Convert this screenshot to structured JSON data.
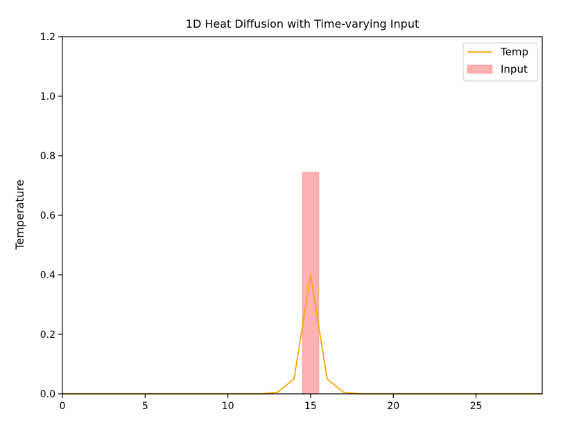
{
  "chart_data": {
    "type": "line",
    "title": "1D Heat Diffusion with Time-varying Input",
    "xlabel": "",
    "ylabel": "Temperature",
    "xlim": [
      0,
      29
    ],
    "ylim": [
      0,
      1.2
    ],
    "xticks": [
      0,
      5,
      10,
      15,
      20,
      25
    ],
    "yticks": [
      0.0,
      0.2,
      0.4,
      0.6,
      0.8,
      1.0,
      1.2
    ],
    "xtick_labels": [
      "0",
      "5",
      "10",
      "15",
      "20",
      "25"
    ],
    "ytick_labels": [
      "0.0",
      "0.2",
      "0.4",
      "0.6",
      "0.8",
      "1.0",
      "1.2"
    ],
    "grid": false,
    "legend_position": "top-right",
    "series": [
      {
        "name": "Temp",
        "kind": "line",
        "color": "#ffa500",
        "x": [
          0,
          1,
          2,
          3,
          4,
          5,
          6,
          7,
          8,
          9,
          10,
          11,
          12,
          13,
          14,
          15,
          16,
          17,
          18,
          19,
          20,
          21,
          22,
          23,
          24,
          25,
          26,
          27,
          28,
          29
        ],
        "values": [
          0,
          0,
          0,
          0,
          0,
          0,
          0,
          0,
          0,
          0,
          0,
          0,
          0,
          0.005,
          0.05,
          0.4,
          0.05,
          0.005,
          0,
          0,
          0,
          0,
          0,
          0,
          0,
          0,
          0,
          0,
          0,
          0
        ]
      },
      {
        "name": "Input",
        "kind": "bar",
        "color": "#ff6f6f",
        "x": [
          15
        ],
        "width": 1,
        "values": [
          0.745
        ]
      }
    ]
  }
}
